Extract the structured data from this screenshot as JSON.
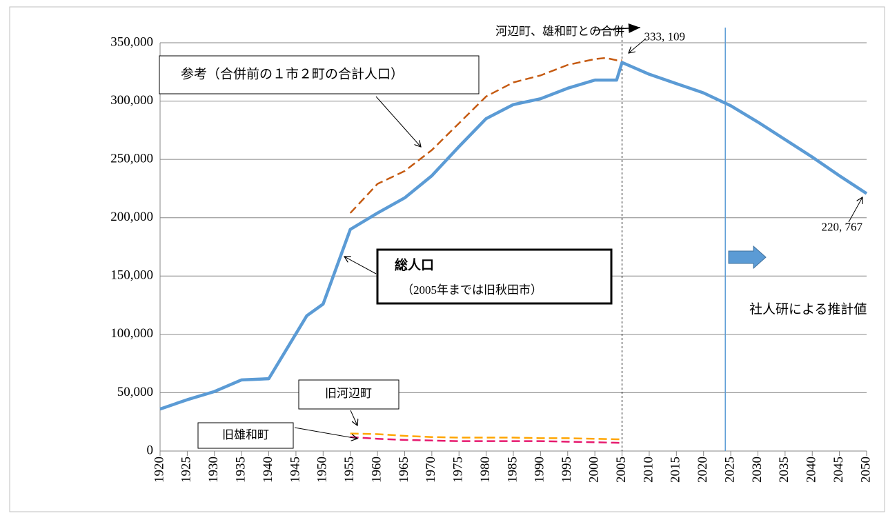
{
  "chart_data": {
    "type": "line",
    "xlim": [
      1920,
      2050
    ],
    "xticks": [
      1920,
      1925,
      1930,
      1935,
      1940,
      1945,
      1950,
      1955,
      1960,
      1965,
      1970,
      1975,
      1980,
      1985,
      1990,
      1995,
      2000,
      2005,
      2010,
      2015,
      2020,
      2025,
      2030,
      2035,
      2040,
      2045,
      2050
    ],
    "ylim": [
      0,
      350000
    ],
    "yticks": [
      0,
      {
        "value": 50000,
        "label": "50,000"
      },
      {
        "value": 100000,
        "label": "100,000"
      },
      {
        "value": 150000,
        "label": "150,000"
      },
      {
        "value": 200000,
        "label": "200,000"
      },
      {
        "value": 250000,
        "label": "250,000"
      },
      {
        "value": 300000,
        "label": "300,000"
      },
      {
        "value": 350000,
        "label": "350,000"
      }
    ],
    "grid": true,
    "series": [
      {
        "name": "総人口",
        "note": "（2005年までは旧秋田市）",
        "color": "#5b9bd5",
        "dash": false,
        "x": [
          1920,
          1925,
          1930,
          1935,
          1940,
          1947,
          1950,
          1955,
          1960,
          1965,
          1970,
          1975,
          1980,
          1985,
          1990,
          1995,
          2000,
          2004,
          2005,
          2010,
          2015,
          2020,
          2025,
          2030,
          2035,
          2040,
          2045,
          2050
        ],
        "values": [
          36000,
          44000,
          51000,
          61000,
          62000,
          116000,
          126000,
          190000,
          204000,
          217000,
          236000,
          261000,
          285000,
          297000,
          302000,
          311000,
          318000,
          318000,
          333109,
          323000,
          315000,
          307000,
          296000,
          282000,
          267000,
          252000,
          236000,
          220767
        ],
        "value_labels": [
          null,
          null,
          null,
          null,
          null,
          null,
          null,
          null,
          null,
          null,
          null,
          null,
          null,
          null,
          null,
          null,
          null,
          null,
          "333, 109",
          null,
          null,
          null,
          null,
          null,
          null,
          null,
          null,
          "220, 767"
        ]
      },
      {
        "name": "参考（合併前の１市２町の合計人口）",
        "color": "#c55a11",
        "dash": true,
        "x": [
          1955,
          1960,
          1965,
          1970,
          1975,
          1980,
          1985,
          1990,
          1995,
          2000,
          2002,
          2004,
          2005
        ],
        "values": [
          204000,
          229000,
          240000,
          258000,
          281000,
          304000,
          316000,
          322000,
          331000,
          336000,
          337000,
          335000,
          335000
        ]
      },
      {
        "name": "旧河辺町",
        "color": "#ffa500",
        "dash": true,
        "x": [
          1955,
          1960,
          1965,
          1970,
          1975,
          1980,
          1985,
          1990,
          1995,
          2000,
          2005
        ],
        "values": [
          15000,
          14500,
          13000,
          12000,
          11500,
          11500,
          11500,
          11000,
          11000,
          10500,
          10000
        ]
      },
      {
        "name": "旧雄和町",
        "color": "#e6196e",
        "dash": true,
        "x": [
          1955,
          1960,
          1965,
          1970,
          1975,
          1980,
          1985,
          1990,
          1995,
          2000,
          2005
        ],
        "values": [
          12000,
          10500,
          9500,
          9000,
          8500,
          8500,
          8500,
          8500,
          8000,
          7500,
          7000
        ]
      }
    ],
    "markers": [
      {
        "x": 2005,
        "color": "#000000",
        "dash": true,
        "text": "河辺町、雄和町との合併"
      },
      {
        "x": 2024,
        "color": "#5b9bd5",
        "dash": false,
        "text": "社人研による推計値"
      }
    ]
  }
}
